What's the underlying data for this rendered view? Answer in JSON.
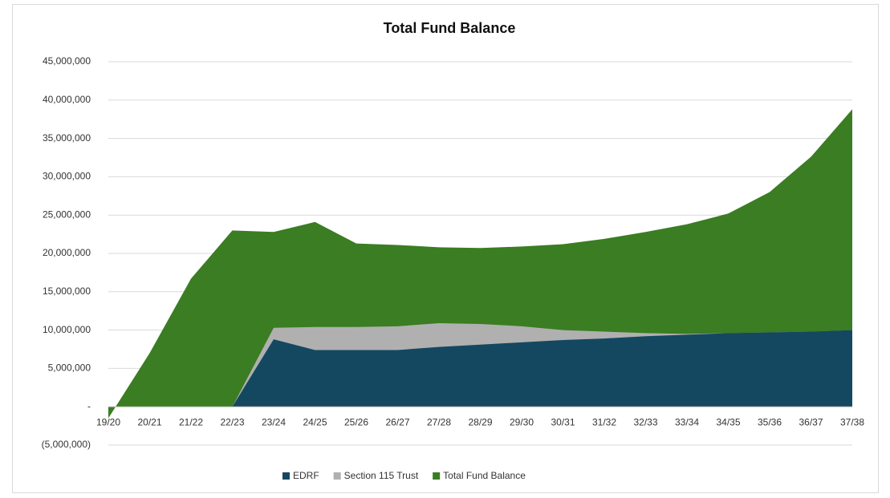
{
  "chart_data": {
    "type": "area",
    "title": "Total Fund Balance",
    "categories": [
      "19/20",
      "20/21",
      "21/22",
      "22/23",
      "23/24",
      "24/25",
      "25/26",
      "26/27",
      "27/28",
      "28/29",
      "29/30",
      "30/31",
      "31/32",
      "32/33",
      "33/34",
      "34/35",
      "35/36",
      "36/37",
      "37/38"
    ],
    "series": [
      {
        "name": "Total Fund Balance",
        "color": "#3a7d22",
        "values": [
          -1500000,
          7000000,
          16700000,
          23000000,
          22800000,
          24100000,
          21300000,
          21100000,
          20800000,
          20700000,
          20900000,
          21200000,
          21900000,
          22800000,
          23800000,
          25200000,
          28000000,
          32600000,
          38800000
        ]
      },
      {
        "name": "Section 115 Trust",
        "color": "#b0b0b0",
        "values": [
          0,
          0,
          0,
          0,
          10300000,
          10400000,
          10400000,
          10500000,
          10900000,
          10800000,
          10500000,
          10000000,
          9800000,
          9600000,
          9500000,
          9600000,
          9700000,
          9800000,
          10000000
        ]
      },
      {
        "name": "EDRF",
        "color": "#144860",
        "values": [
          0,
          0,
          0,
          0,
          8800000,
          7400000,
          7400000,
          7400000,
          7800000,
          8100000,
          8400000,
          8700000,
          8900000,
          9200000,
          9400000,
          9600000,
          9700000,
          9800000,
          10000000
        ]
      }
    ],
    "legend_order": [
      "EDRF",
      "Section 115 Trust",
      "Total Fund Balance"
    ],
    "ylim": [
      -5000000,
      45000000
    ],
    "yticks": [
      {
        "value": -5000000,
        "label": "(5,000,000)"
      },
      {
        "value": 0,
        "label": "-"
      },
      {
        "value": 5000000,
        "label": "5,000,000"
      },
      {
        "value": 10000000,
        "label": "10,000,000"
      },
      {
        "value": 15000000,
        "label": "15,000,000"
      },
      {
        "value": 20000000,
        "label": "20,000,000"
      },
      {
        "value": 25000000,
        "label": "25,000,000"
      },
      {
        "value": 30000000,
        "label": "30,000,000"
      },
      {
        "value": 35000000,
        "label": "35,000,000"
      },
      {
        "value": 40000000,
        "label": "40,000,000"
      },
      {
        "value": 45000000,
        "label": "45,000,000"
      }
    ],
    "grid": true,
    "legend": "bottom"
  }
}
